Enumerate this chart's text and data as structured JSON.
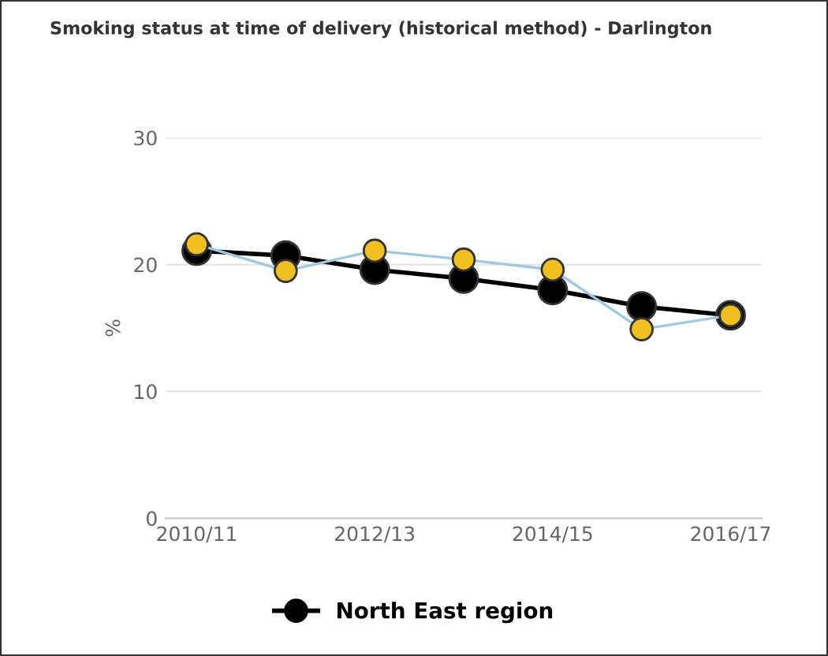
{
  "chart_data": {
    "type": "line",
    "title": "Smoking status at time of delivery (historical method) - Darlington",
    "ylabel": "%",
    "categories": [
      "2010/11",
      null,
      "2012/13",
      null,
      "2014/15",
      null,
      "2016/17"
    ],
    "series": [
      {
        "name": "North East region",
        "color": "#000000",
        "values": [
          21.1,
          20.7,
          19.6,
          18.9,
          18.0,
          16.7,
          16.0
        ]
      },
      {
        "color": "#9ecae1",
        "colors": [
          "#f0c020",
          "#f0c020",
          "#f0c020",
          "#f0c020",
          "#f0c020",
          "#f0c020",
          "#f0c020"
        ],
        "values": [
          21.6,
          19.5,
          21.1,
          20.4,
          19.6,
          14.9,
          16.0
        ]
      }
    ],
    "ylim": [
      0,
      30
    ],
    "yticks": [
      0,
      10,
      20,
      30
    ],
    "grid": "y",
    "legend": "bottom",
    "marker": "circle"
  }
}
